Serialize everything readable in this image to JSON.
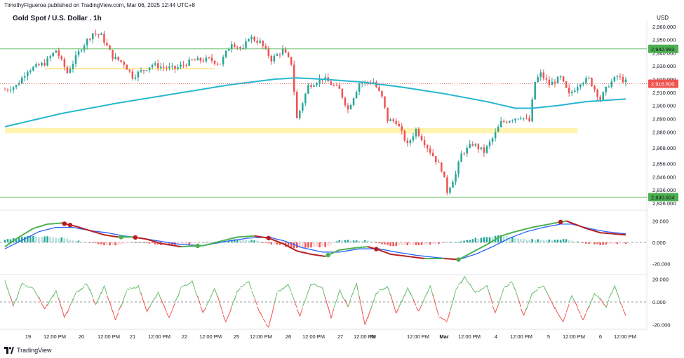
{
  "header": {
    "publisher": "TimothyFigueroa published on TradingView.com, Mar 06, 2025 12:44 UTC+8",
    "title": "Gold Spot / U.S. Dollar . 1h",
    "currency": "USD"
  },
  "footer": {
    "brand": "TradingView"
  },
  "colors": {
    "up": "#26a69a",
    "down": "#ef5350",
    "ma": "#26b6cf",
    "support_line": "#4caf50",
    "zone": "#fff3b0",
    "osc_fast": "#4caf50",
    "osc_fast_down": "#b71c1c",
    "osc_slow": "#2962ff",
    "hist_up_strong": "#26a69a",
    "hist_up_weak": "#b2dfdb",
    "hist_down_strong": "#ef5350",
    "hist_down_weak": "#ffcdd2"
  },
  "chart_data": [
    {
      "type": "candlestick",
      "title": "Gold Spot / U.S. Dollar . 1h",
      "ylim": [
        2826,
        2962
      ],
      "y_ticks": [
        "2,960.000",
        "2,950.000",
        "2,940.000",
        "2,930.000",
        "2,920.000",
        "2,910.000",
        "2,900.000",
        "2,890.000",
        "2,880.000",
        "2,868.000",
        "2,856.000",
        "2,846.000",
        "2,836.000",
        "2,826.000"
      ],
      "x_ticks": [
        "19",
        "12:00 PM",
        "20",
        "12:00 PM",
        "21",
        "12:00 PM",
        "22",
        "12:00 PM",
        "25",
        "12:00 PM",
        "26",
        "12:00 PM",
        "27",
        "12:00 PM",
        "28",
        "12:00 PM",
        "Mar",
        "12:00 PM",
        "4",
        "12:00 PM",
        "5",
        "12:00 PM",
        "6",
        "12:00 PM"
      ],
      "price_waypoints": [
        [
          0,
          2912
        ],
        [
          4,
          2915
        ],
        [
          8,
          2927
        ],
        [
          14,
          2932
        ],
        [
          18,
          2942
        ],
        [
          22,
          2925
        ],
        [
          27,
          2944
        ],
        [
          31,
          2955
        ],
        [
          34,
          2953
        ],
        [
          38,
          2937
        ],
        [
          42,
          2932
        ],
        [
          45,
          2922
        ],
        [
          48,
          2926
        ],
        [
          52,
          2931
        ],
        [
          56,
          2929
        ],
        [
          60,
          2928
        ],
        [
          66,
          2934
        ],
        [
          72,
          2935
        ],
        [
          76,
          2932
        ],
        [
          80,
          2948
        ],
        [
          84,
          2942
        ],
        [
          86,
          2952
        ],
        [
          90,
          2948
        ],
        [
          94,
          2935
        ],
        [
          98,
          2942
        ],
        [
          101,
          2932
        ],
        [
          103,
          2890
        ],
        [
          107,
          2915
        ],
        [
          112,
          2921
        ],
        [
          118,
          2912
        ],
        [
          121,
          2897
        ],
        [
          125,
          2917
        ],
        [
          130,
          2918
        ],
        [
          133,
          2906
        ],
        [
          135,
          2889
        ],
        [
          138,
          2888
        ],
        [
          142,
          2870
        ],
        [
          145,
          2882
        ],
        [
          148,
          2872
        ],
        [
          151,
          2862
        ],
        [
          154,
          2852
        ],
        [
          156,
          2835
        ],
        [
          159,
          2848
        ],
        [
          161,
          2863
        ],
        [
          165,
          2871
        ],
        [
          169,
          2865
        ],
        [
          172,
          2875
        ],
        [
          175,
          2887
        ],
        [
          179,
          2890
        ],
        [
          182,
          2892
        ],
        [
          185,
          2888
        ],
        [
          187,
          2918
        ],
        [
          189,
          2924
        ],
        [
          192,
          2916
        ],
        [
          196,
          2921
        ],
        [
          199,
          2908
        ],
        [
          203,
          2918
        ],
        [
          206,
          2920
        ],
        [
          210,
          2905
        ],
        [
          213,
          2916
        ],
        [
          216,
          2922
        ],
        [
          219,
          2918
        ]
      ],
      "ma_waypoints": [
        [
          0,
          2884
        ],
        [
          20,
          2894
        ],
        [
          40,
          2902
        ],
        [
          60,
          2909
        ],
        [
          80,
          2916
        ],
        [
          95,
          2920
        ],
        [
          103,
          2921
        ],
        [
          112,
          2920
        ],
        [
          125,
          2918
        ],
        [
          140,
          2914
        ],
        [
          155,
          2909
        ],
        [
          170,
          2903
        ],
        [
          180,
          2898
        ],
        [
          186,
          2898
        ],
        [
          195,
          2900
        ],
        [
          205,
          2903
        ],
        [
          219,
          2905
        ]
      ],
      "level_lines": [
        {
          "value": 2942.993,
          "label": "2,942.993",
          "color": "#4caf50"
        },
        {
          "value": 2916.6,
          "label": "2,916.600",
          "color": "#ef5350",
          "dotted": true
        },
        {
          "value": 2830.604,
          "label": "2,830.604",
          "color": "#4caf50"
        }
      ],
      "zone": {
        "from": 2879,
        "to": 2883,
        "x_end_index": 202
      },
      "small_zone": {
        "value": 2928,
        "x_start_index": 14,
        "x_end_index": 74
      }
    },
    {
      "type": "oscillator",
      "y_ticks": [
        "20.000",
        "0.000",
        "-20.000"
      ],
      "ylim": [
        -30,
        30
      ],
      "fast_waypoints": [
        [
          0,
          -4
        ],
        [
          5,
          5
        ],
        [
          10,
          13
        ],
        [
          15,
          17
        ],
        [
          20,
          18
        ],
        [
          25,
          15
        ],
        [
          30,
          11
        ],
        [
          35,
          7
        ],
        [
          40,
          5
        ],
        [
          45,
          5
        ],
        [
          50,
          3
        ],
        [
          55,
          -1
        ],
        [
          62,
          -4
        ],
        [
          70,
          -3
        ],
        [
          76,
          1
        ],
        [
          82,
          5
        ],
        [
          88,
          6
        ],
        [
          93,
          4
        ],
        [
          98,
          -1
        ],
        [
          103,
          -8
        ],
        [
          108,
          -11
        ],
        [
          113,
          -13
        ],
        [
          118,
          -7
        ],
        [
          124,
          -5
        ],
        [
          128,
          -4
        ],
        [
          132,
          -7
        ],
        [
          136,
          -11
        ],
        [
          142,
          -13
        ],
        [
          148,
          -15
        ],
        [
          155,
          -15
        ],
        [
          160,
          -16
        ],
        [
          165,
          -9
        ],
        [
          170,
          -2
        ],
        [
          175,
          6
        ],
        [
          180,
          10
        ],
        [
          186,
          14
        ],
        [
          192,
          17
        ],
        [
          198,
          20
        ],
        [
          200,
          18
        ],
        [
          205,
          13
        ],
        [
          210,
          9
        ],
        [
          219,
          7
        ]
      ],
      "slow_waypoints": [
        [
          0,
          -6
        ],
        [
          6,
          2
        ],
        [
          12,
          10
        ],
        [
          18,
          14
        ],
        [
          24,
          14
        ],
        [
          30,
          11
        ],
        [
          36,
          9
        ],
        [
          42,
          6
        ],
        [
          48,
          4
        ],
        [
          55,
          1
        ],
        [
          62,
          -2
        ],
        [
          70,
          -3
        ],
        [
          78,
          1
        ],
        [
          86,
          4
        ],
        [
          93,
          5
        ],
        [
          99,
          1
        ],
        [
          105,
          -5
        ],
        [
          112,
          -9
        ],
        [
          118,
          -9
        ],
        [
          125,
          -6
        ],
        [
          132,
          -6
        ],
        [
          138,
          -9
        ],
        [
          145,
          -12
        ],
        [
          152,
          -14
        ],
        [
          160,
          -16
        ],
        [
          166,
          -11
        ],
        [
          172,
          -4
        ],
        [
          178,
          4
        ],
        [
          184,
          10
        ],
        [
          190,
          14
        ],
        [
          196,
          17
        ],
        [
          200,
          17
        ],
        [
          206,
          13
        ],
        [
          212,
          10
        ],
        [
          219,
          8
        ]
      ],
      "cross_down": [
        21,
        23,
        46,
        93,
        131,
        196
      ],
      "cross_up": [
        41,
        68,
        114,
        160
      ]
    },
    {
      "type": "line",
      "y_ticks": [
        "20.000",
        "0.000",
        "-20.000"
      ],
      "ylim": [
        -24,
        24
      ],
      "waypoints": [
        [
          0,
          18
        ],
        [
          3,
          -4
        ],
        [
          6,
          16
        ],
        [
          10,
          12
        ],
        [
          14,
          -6
        ],
        [
          18,
          10
        ],
        [
          21,
          -14
        ],
        [
          25,
          8
        ],
        [
          29,
          16
        ],
        [
          32,
          -2
        ],
        [
          35,
          14
        ],
        [
          39,
          -16
        ],
        [
          43,
          10
        ],
        [
          47,
          14
        ],
        [
          50,
          -8
        ],
        [
          54,
          8
        ],
        [
          58,
          -14
        ],
        [
          62,
          12
        ],
        [
          66,
          18
        ],
        [
          70,
          -10
        ],
        [
          74,
          12
        ],
        [
          78,
          -18
        ],
        [
          82,
          10
        ],
        [
          86,
          18
        ],
        [
          90,
          -10
        ],
        [
          93,
          -22
        ],
        [
          96,
          8
        ],
        [
          100,
          16
        ],
        [
          104,
          -12
        ],
        [
          108,
          16
        ],
        [
          112,
          12
        ],
        [
          115,
          -14
        ],
        [
          118,
          10
        ],
        [
          121,
          -4
        ],
        [
          124,
          16
        ],
        [
          127,
          -20
        ],
        [
          131,
          8
        ],
        [
          135,
          14
        ],
        [
          138,
          -10
        ],
        [
          142,
          12
        ],
        [
          146,
          -8
        ],
        [
          150,
          14
        ],
        [
          153,
          -12
        ],
        [
          156,
          -18
        ],
        [
          159,
          10
        ],
        [
          162,
          22
        ],
        [
          166,
          8
        ],
        [
          170,
          14
        ],
        [
          173,
          -10
        ],
        [
          176,
          12
        ],
        [
          179,
          18
        ],
        [
          183,
          -12
        ],
        [
          186,
          8
        ],
        [
          190,
          14
        ],
        [
          194,
          -6
        ],
        [
          197,
          -18
        ],
        [
          200,
          6
        ],
        [
          204,
          -16
        ],
        [
          208,
          8
        ],
        [
          212,
          -4
        ],
        [
          215,
          14
        ],
        [
          219,
          -12
        ]
      ]
    }
  ]
}
